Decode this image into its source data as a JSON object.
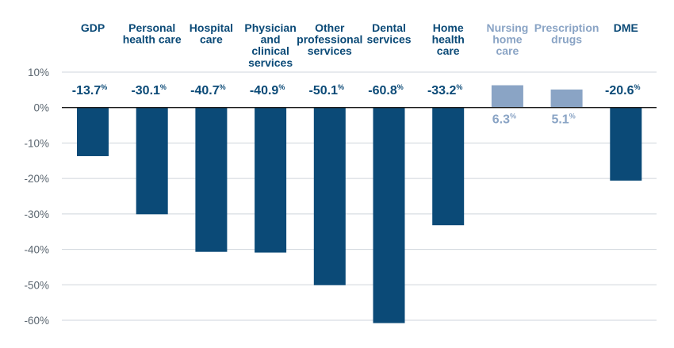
{
  "chart_data": {
    "type": "bar",
    "title": "",
    "xlabel": "",
    "ylabel": "",
    "ylim": [
      -60,
      10
    ],
    "yticks": [
      10,
      0,
      -10,
      -20,
      -30,
      -40,
      -50,
      -60
    ],
    "ytick_labels": [
      "10%",
      "0%",
      "-10%",
      "-20%",
      "-30%",
      "-40%",
      "-50%",
      "-60%"
    ],
    "grid": true,
    "categories": [
      [
        "GDP"
      ],
      [
        "Personal",
        "health care"
      ],
      [
        "Hospital",
        "care"
      ],
      [
        "Physician",
        "and",
        "clinical",
        "services"
      ],
      [
        "Other",
        "professional",
        "services"
      ],
      [
        "Dental",
        "services"
      ],
      [
        "Home",
        "health",
        "care"
      ],
      [
        "Nursing",
        "home",
        "care"
      ],
      [
        "Prescription",
        "drugs"
      ],
      [
        "DME"
      ]
    ],
    "values": [
      -13.7,
      -30.1,
      -40.7,
      -40.9,
      -50.1,
      -60.8,
      -33.2,
      6.3,
      5.1,
      -20.6
    ],
    "value_labels": [
      "-13.7",
      "-30.1",
      "-40.7",
      "-40.9",
      "-50.1",
      "-60.8",
      "-33.2",
      "6.3",
      "5.1",
      "-20.6"
    ],
    "value_suffix": "%",
    "colors": {
      "negative": "#0b4a77",
      "positive": "#8aa4c5",
      "grid": "#cfd5dc",
      "zero_line": "#1a1a1a",
      "tick_text": "#5b6670"
    }
  }
}
